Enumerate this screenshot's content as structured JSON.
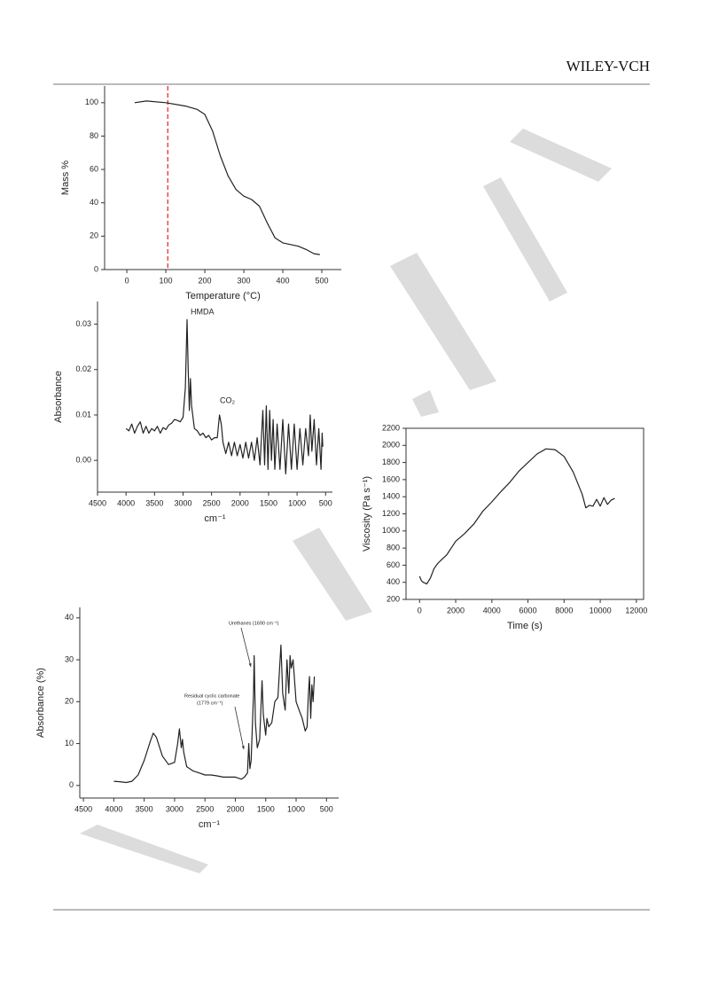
{
  "header": {
    "publisher": "WILEY-VCH"
  },
  "chart_data": [
    {
      "type": "line",
      "x_label": "Temperature (°C)",
      "y_label": "Mass %",
      "xlim": [
        -57,
        550
      ],
      "ylim": [
        0,
        110
      ],
      "xticks": [
        0,
        100,
        200,
        300,
        400,
        500
      ],
      "yticks": [
        0,
        20,
        40,
        60,
        80,
        100
      ],
      "reference_line": {
        "x": 105,
        "color": "#e02020",
        "style": "dashed"
      },
      "color": "#222222",
      "x": [
        20,
        50,
        100,
        150,
        180,
        200,
        220,
        240,
        260,
        280,
        300,
        320,
        340,
        360,
        380,
        400,
        420,
        440,
        460,
        480,
        495
      ],
      "values": [
        100,
        101,
        100,
        98,
        96,
        93,
        83,
        68,
        56,
        48,
        44,
        42,
        38,
        28,
        19,
        16,
        15,
        14,
        12,
        9.5,
        9
      ]
    },
    {
      "type": "line",
      "x_label": "cm⁻¹",
      "y_label": "Absorbance",
      "annotations": [
        "HMDA",
        "CO₂"
      ],
      "xlim": [
        4500,
        380
      ],
      "ylim": [
        -0.007,
        0.035
      ],
      "xticks": [
        4500,
        4000,
        3500,
        3000,
        2500,
        2000,
        1500,
        1000,
        500
      ],
      "yticks": [
        {
          "value": 0,
          "label": "0.00"
        },
        {
          "value": 0.01,
          "label": "0.01"
        },
        {
          "value": 0.02,
          "label": "0.02"
        },
        {
          "value": 0.03,
          "label": "0.03"
        }
      ],
      "color": "#222222",
      "x": [
        4000,
        3950,
        3900,
        3850,
        3800,
        3750,
        3700,
        3650,
        3600,
        3550,
        3500,
        3450,
        3400,
        3350,
        3300,
        3250,
        3200,
        3150,
        3100,
        3050,
        3000,
        2960,
        2930,
        2910,
        2890,
        2870,
        2850,
        2800,
        2750,
        2700,
        2650,
        2600,
        2550,
        2500,
        2450,
        2400,
        2360,
        2330,
        2300,
        2250,
        2200,
        2150,
        2100,
        2050,
        2000,
        1950,
        1900,
        1850,
        1800,
        1750,
        1700,
        1650,
        1600,
        1570,
        1540,
        1510,
        1480,
        1450,
        1420,
        1390,
        1350,
        1300,
        1250,
        1200,
        1150,
        1100,
        1050,
        1000,
        950,
        900,
        850,
        800,
        770,
        740,
        700,
        660,
        620,
        580,
        560,
        550
      ],
      "values": [
        0.007,
        0.0065,
        0.008,
        0.006,
        0.0075,
        0.0085,
        0.006,
        0.0075,
        0.006,
        0.007,
        0.0065,
        0.0075,
        0.006,
        0.0072,
        0.0068,
        0.0078,
        0.0082,
        0.009,
        0.0088,
        0.0085,
        0.0095,
        0.016,
        0.031,
        0.02,
        0.011,
        0.018,
        0.012,
        0.007,
        0.0065,
        0.0055,
        0.006,
        0.005,
        0.0055,
        0.0045,
        0.005,
        0.005,
        0.01,
        0.008,
        0.004,
        0.0015,
        0.004,
        0.001,
        0.004,
        0.001,
        0.0035,
        0.0005,
        0.004,
        0.0005,
        0.004,
        0,
        0.005,
        -0.001,
        0.011,
        -0.001,
        0.012,
        -0.002,
        0.011,
        0,
        0.009,
        -0.002,
        0.008,
        -0.002,
        0.009,
        -0.003,
        0.008,
        -0.002,
        0.008,
        -0.002,
        0.007,
        -0.001,
        0.007,
        0.001,
        0.01,
        0.002,
        0.009,
        -0.001,
        0.007,
        -0.002,
        0.006,
        0.003
      ]
    },
    {
      "type": "line",
      "x_label": "Time (s)",
      "y_label": "Viscosity (Pa s⁻¹)",
      "xlim": [
        -750,
        12400
      ],
      "ylim": [
        200,
        2200
      ],
      "xticks": [
        0,
        2000,
        4000,
        6000,
        8000,
        10000,
        12000
      ],
      "yticks": [
        200,
        400,
        600,
        800,
        1000,
        1200,
        1400,
        1600,
        1800,
        2000,
        2200
      ],
      "frame": true,
      "color": "#222222",
      "x": [
        0,
        100,
        200,
        400,
        600,
        800,
        1000,
        1200,
        1500,
        2000,
        2500,
        3000,
        3500,
        4000,
        4500,
        5000,
        5500,
        6000,
        6500,
        7000,
        7500,
        8000,
        8500,
        9000,
        9200,
        9400,
        9600,
        9800,
        10000,
        10200,
        10400,
        10600,
        10800
      ],
      "values": [
        470,
        420,
        400,
        380,
        450,
        560,
        620,
        660,
        720,
        880,
        970,
        1080,
        1230,
        1340,
        1460,
        1570,
        1700,
        1800,
        1900,
        1960,
        1950,
        1870,
        1690,
        1430,
        1270,
        1300,
        1290,
        1370,
        1290,
        1390,
        1310,
        1360,
        1380
      ]
    },
    {
      "type": "line",
      "x_label": "cm⁻¹",
      "y_label": "Absorbance (%)",
      "annotations": [
        "Urethanes (1690 cm⁻¹)",
        "Residual cyclic carbonate",
        "(1779 cm⁻¹)"
      ],
      "xlim": [
        4560,
        300
      ],
      "ylim": [
        -3,
        42.5
      ],
      "xticks": [
        4500,
        4000,
        3500,
        3000,
        2500,
        2000,
        1500,
        1000,
        500
      ],
      "yticks": [
        0,
        10,
        20,
        30,
        40
      ],
      "color": "#222222",
      "x": [
        4000,
        3900,
        3800,
        3700,
        3600,
        3500,
        3400,
        3350,
        3300,
        3200,
        3100,
        3000,
        2950,
        2920,
        2890,
        2870,
        2850,
        2800,
        2700,
        2600,
        2500,
        2400,
        2300,
        2200,
        2100,
        2000,
        1900,
        1850,
        1800,
        1779,
        1760,
        1740,
        1700,
        1690,
        1670,
        1640,
        1600,
        1560,
        1540,
        1500,
        1480,
        1450,
        1400,
        1350,
        1300,
        1250,
        1220,
        1180,
        1150,
        1120,
        1100,
        1080,
        1050,
        1000,
        950,
        900,
        850,
        820,
        800,
        780,
        760,
        740,
        720,
        700
      ],
      "values": [
        1,
        0.9,
        0.7,
        1,
        2.5,
        6,
        10.5,
        12.5,
        11.5,
        7,
        5,
        5.5,
        10,
        13.5,
        9,
        11,
        8,
        4.5,
        3.5,
        3,
        2.5,
        2.5,
        2.3,
        2,
        2,
        2,
        1.5,
        2,
        3,
        10,
        4,
        6,
        22,
        31,
        15,
        9,
        11,
        25,
        17,
        12,
        16,
        14,
        15,
        20,
        21,
        33.5,
        22,
        18,
        30,
        22,
        31,
        28,
        30,
        20,
        18,
        16,
        13,
        14,
        21,
        26,
        16,
        24,
        20,
        26
      ]
    }
  ]
}
